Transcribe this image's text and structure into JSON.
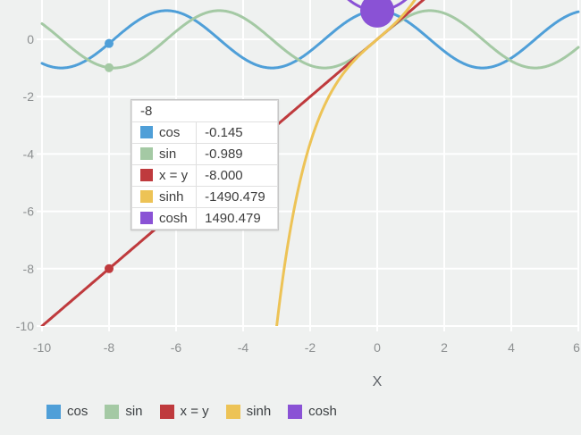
{
  "page": {
    "background": "#eff1f0"
  },
  "chart_data": {
    "type": "line",
    "title": "",
    "xlabel": "X",
    "ylabel": "",
    "grid": true,
    "legend_position": "bottom",
    "x_range": [
      -10,
      6
    ],
    "y_visible_top": 1.371,
    "y_visible_bottom": -10,
    "x_ticks": [
      "-10",
      "-8",
      "-6",
      "-4",
      "-2",
      "0",
      "2",
      "4",
      "6"
    ],
    "x_tick_values": [
      -10,
      -8,
      -6,
      -4,
      -2,
      0,
      2,
      4,
      6
    ],
    "y_ticks": [
      "0",
      "-2",
      "-4",
      "-6",
      "-8",
      "-10"
    ],
    "y_tick_values": [
      0,
      -2,
      -4,
      -6,
      -8,
      -10
    ],
    "series": [
      {
        "label": "cos",
        "fn": "cos",
        "color": "#4f9fd8"
      },
      {
        "label": "sin",
        "fn": "sin",
        "color": "#a4c9a4"
      },
      {
        "label": "x = y",
        "fn": "identity",
        "color": "#bf3a3d"
      },
      {
        "label": "sinh",
        "fn": "sinh",
        "color": "#edc356"
      },
      {
        "label": "cosh",
        "fn": "cosh",
        "color": "#8a52d5"
      }
    ],
    "highlight_x": -8,
    "highlight_points": [
      {
        "series": 0,
        "x": -8,
        "y": -0.145,
        "r": 5
      },
      {
        "series": 1,
        "x": -8,
        "y": -0.989,
        "r": 5
      },
      {
        "series": 2,
        "x": -8,
        "y": -8.0,
        "r": 5
      },
      {
        "series": 4,
        "x": 0,
        "y": 1.0,
        "r": 19
      }
    ]
  },
  "tooltip": {
    "header": "-8",
    "rows": [
      {
        "label": "cos",
        "value": "-0.145",
        "color": "#4f9fd8"
      },
      {
        "label": "sin",
        "value": "-0.989",
        "color": "#a4c9a4"
      },
      {
        "label": "x = y",
        "value": "-8.000",
        "color": "#bf3a3d"
      },
      {
        "label": "sinh",
        "value": "-1490.479",
        "color": "#edc356"
      },
      {
        "label": "cosh",
        "value": "1490.479",
        "color": "#8a52d5"
      }
    ]
  },
  "legend": {
    "items": [
      {
        "label": "cos",
        "color": "#4f9fd8"
      },
      {
        "label": "sin",
        "color": "#a4c9a4"
      },
      {
        "label": "x = y",
        "color": "#bf3a3d"
      },
      {
        "label": "sinh",
        "color": "#edc356"
      },
      {
        "label": "cosh",
        "color": "#8a52d5"
      }
    ]
  }
}
